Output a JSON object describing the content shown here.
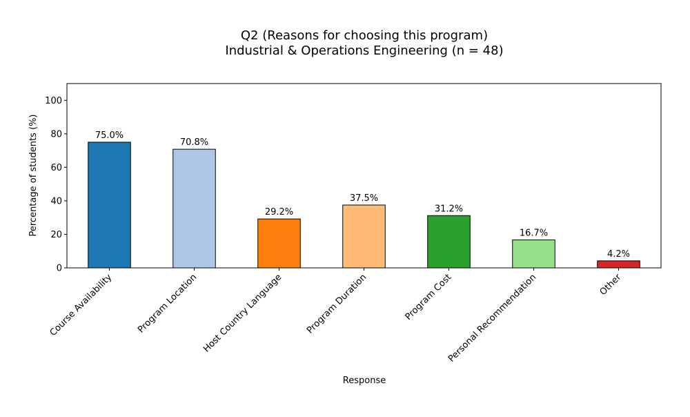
{
  "chart_data": {
    "type": "bar",
    "title_lines": [
      "Q2 (Reasons for choosing this program)",
      "Industrial & Operations Engineering (n = 48)"
    ],
    "xlabel": "Response",
    "ylabel": "Percentage of students (%)",
    "ylim": [
      0,
      110
    ],
    "yticks": [
      0,
      20,
      40,
      60,
      80,
      100
    ],
    "grid": false,
    "categories": [
      "Course Availability",
      "Program Location",
      "Host Country Language",
      "Program Duration",
      "Program Cost",
      "Personal Recommendation",
      "Other"
    ],
    "values": [
      75.0,
      70.8,
      29.2,
      37.5,
      31.2,
      16.7,
      4.2
    ],
    "value_labels": [
      "75.0%",
      "70.8%",
      "29.2%",
      "37.5%",
      "31.2%",
      "16.7%",
      "4.2%"
    ],
    "colors": [
      "#1f77b4",
      "#aec7e8",
      "#ff7f0e",
      "#ffbb78",
      "#2ca02c",
      "#98df8a",
      "#d62728"
    ],
    "bar_edge_color": "#000000"
  }
}
